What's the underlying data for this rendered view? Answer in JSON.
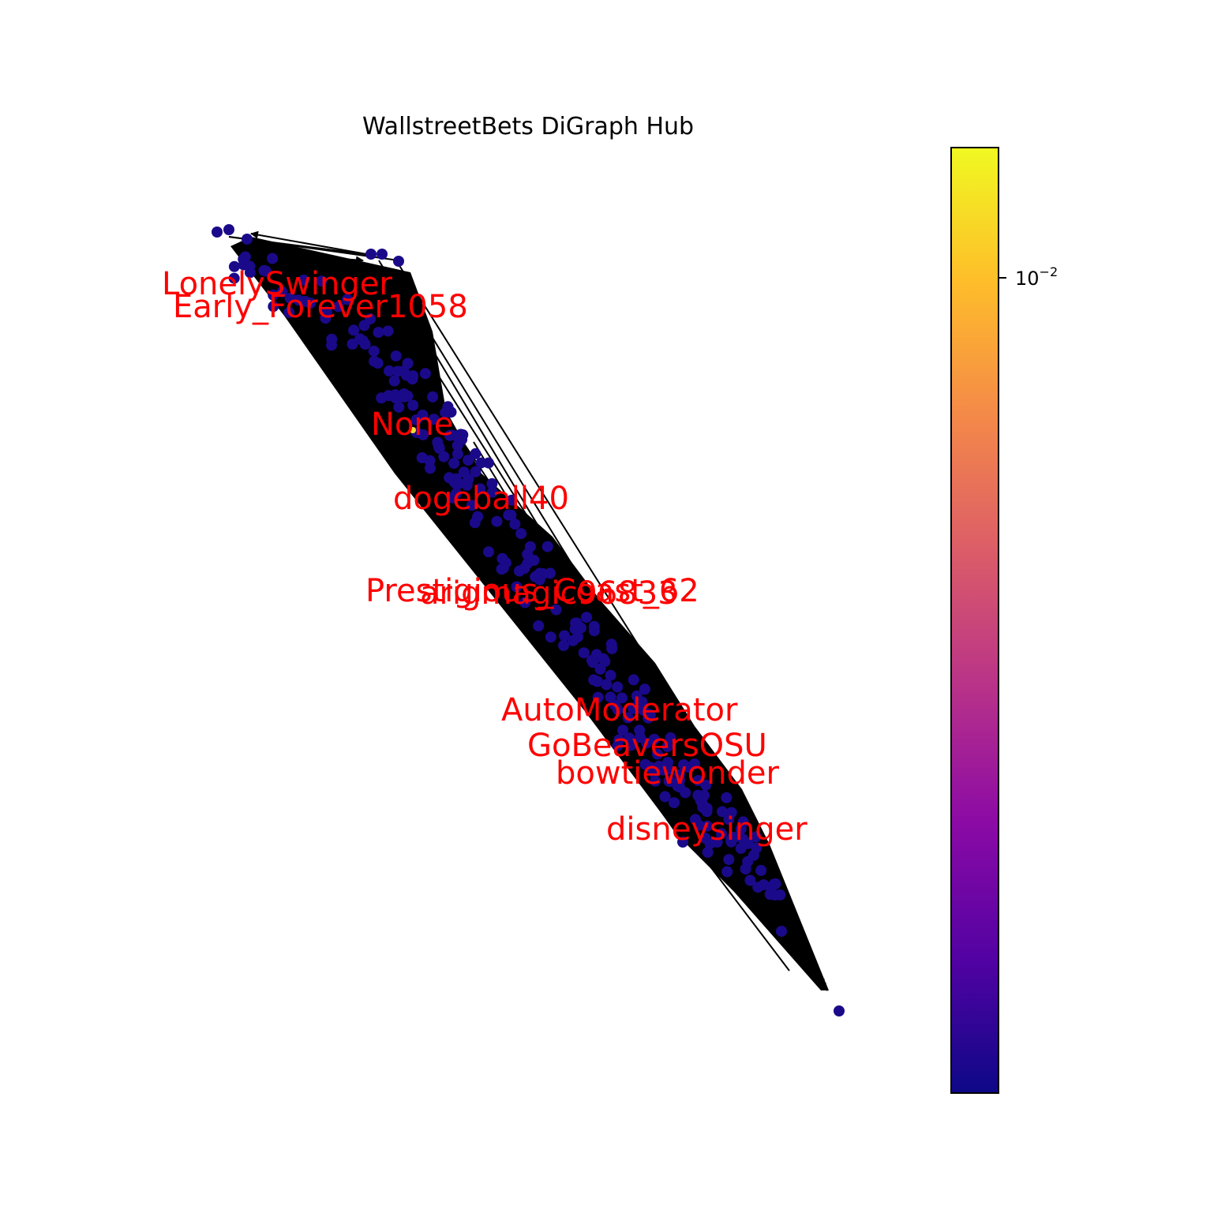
{
  "title": "WallstreetBets DiGraph Hub",
  "label_color": "#ff0000",
  "edge_color": "#000000",
  "node_color": "#1a0a8a",
  "hub_node_color": "#f0e030",
  "colormap": "plasma",
  "colormap_stops": [
    "#0d0887",
    "#5302a3",
    "#8b0aa5",
    "#b83289",
    "#db5c68",
    "#f48849",
    "#febd2a",
    "#f0f921"
  ],
  "colorbar": {
    "scale": "log",
    "tick_base": "10",
    "tick_exponent": "−2"
  },
  "labels": [
    {
      "text": "LonelySwinger"
    },
    {
      "text": "Early_Forever1058"
    },
    {
      "text": "None"
    },
    {
      "text": "dogeball40"
    },
    {
      "text": "Prestigious_Coast_62"
    },
    {
      "text": "arigmagic96833"
    },
    {
      "text": "AutoModerator"
    },
    {
      "text": "GoBeaversOSU"
    },
    {
      "text": "bowtiewonder"
    },
    {
      "text": "disneysinger"
    }
  ]
}
